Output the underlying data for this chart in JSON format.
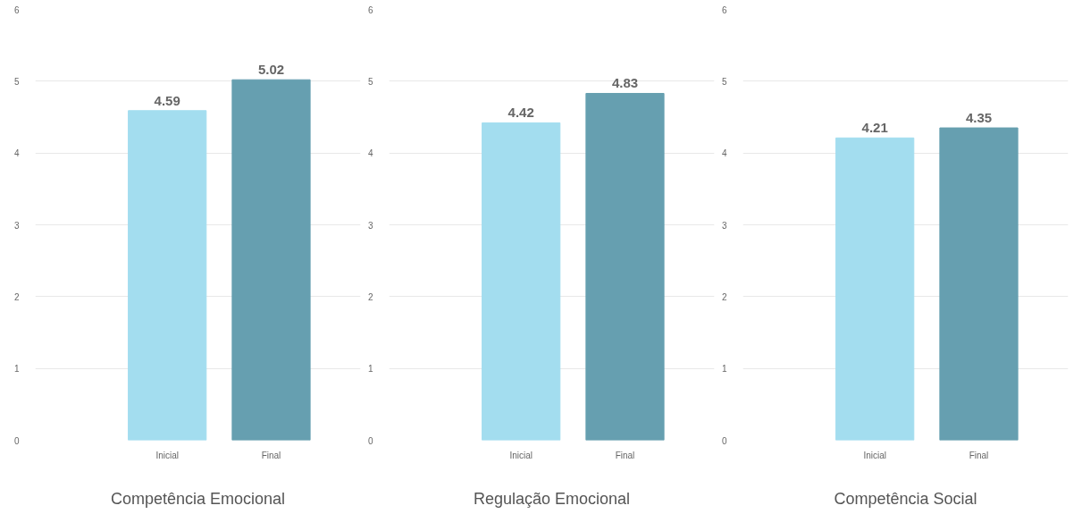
{
  "chart_data": [
    {
      "type": "bar",
      "xlabel": "Competência Emocional",
      "categories": [
        "Inicial",
        "Final"
      ],
      "values": [
        4.59,
        5.02
      ],
      "colors": [
        "#a3ddef",
        "#669fb0"
      ],
      "ylim": [
        0,
        6
      ],
      "yticks": [
        0,
        1,
        2,
        3,
        4,
        5,
        6
      ],
      "grid": "y",
      "data_labels": true
    },
    {
      "type": "bar",
      "xlabel": "Regulação Emocional",
      "categories": [
        "Inicial",
        "Final"
      ],
      "values": [
        4.42,
        4.83
      ],
      "colors": [
        "#a3ddef",
        "#669fb0"
      ],
      "ylim": [
        0,
        6
      ],
      "yticks": [
        0,
        1,
        2,
        3,
        4,
        5,
        6
      ],
      "grid": "y",
      "data_labels": true
    },
    {
      "type": "bar",
      "xlabel": "Competência Social",
      "categories": [
        "Inicial",
        "Final"
      ],
      "values": [
        4.21,
        4.35
      ],
      "colors": [
        "#a3ddef",
        "#669fb0"
      ],
      "ylim": [
        0,
        6
      ],
      "yticks": [
        0,
        1,
        2,
        3,
        4,
        5,
        6
      ],
      "grid": "y",
      "data_labels": true
    }
  ]
}
